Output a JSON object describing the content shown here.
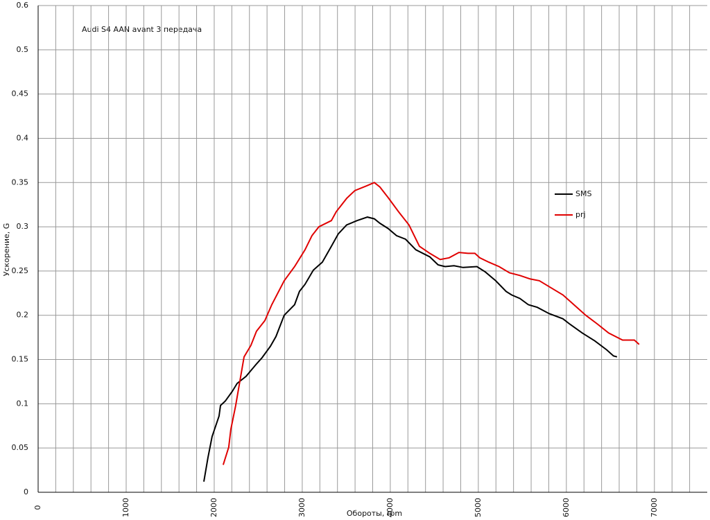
{
  "chart_data": {
    "type": "line",
    "title": "Audi S4 AAN avant 3 передача",
    "x_label": "Обороты, rpm",
    "y_label": "Ускорение, G",
    "xlim": [
      0,
      7600
    ],
    "xticks": [
      0,
      1000,
      2000,
      3000,
      4000,
      5000,
      6000,
      7000
    ],
    "ylim": [
      0,
      0.55
    ],
    "yticks": [
      0,
      0.05,
      0.1,
      0.15,
      0.2,
      0.25,
      0.3,
      0.35,
      0.4,
      0.45,
      0.5,
      {
        "value": 0.55,
        "label": "0.6"
      }
    ],
    "grid": true,
    "series": [
      {
        "name": "SMS",
        "color": "#000000",
        "x": [
          1882,
          1929,
          1976,
          2055,
          2071,
          2126,
          2205,
          2260,
          2362,
          2480,
          2543,
          2638,
          2701,
          2795,
          2913,
          2968,
          3031,
          3126,
          3228,
          3331,
          3409,
          3504,
          3622,
          3740,
          3819,
          3882,
          3976,
          4071,
          4173,
          4291,
          4449,
          4543,
          4622,
          4724,
          4827,
          4984,
          5079,
          5197,
          5315,
          5378,
          5472,
          5567,
          5669,
          5803,
          5961,
          6039,
          6181,
          6323,
          6457,
          6535,
          6575
        ],
        "values": [
          0.012,
          0.039,
          0.063,
          0.086,
          0.098,
          0.103,
          0.114,
          0.123,
          0.131,
          0.145,
          0.152,
          0.165,
          0.176,
          0.2,
          0.212,
          0.227,
          0.235,
          0.251,
          0.26,
          0.278,
          0.292,
          0.302,
          0.307,
          0.311,
          0.309,
          0.304,
          0.298,
          0.29,
          0.286,
          0.274,
          0.266,
          0.257,
          0.255,
          0.256,
          0.254,
          0.255,
          0.249,
          0.239,
          0.227,
          0.223,
          0.219,
          0.212,
          0.209,
          0.202,
          0.196,
          0.19,
          0.18,
          0.171,
          0.161,
          0.154,
          0.153
        ]
      },
      {
        "name": "prj",
        "color": "#e00000",
        "x": [
          2102,
          2165,
          2189,
          2244,
          2339,
          2417,
          2480,
          2575,
          2654,
          2795,
          2913,
          3031,
          3110,
          3189,
          3331,
          3386,
          3504,
          3598,
          3724,
          3819,
          3882,
          3976,
          4094,
          4213,
          4331,
          4449,
          4567,
          4669,
          4780,
          4882,
          4961,
          5016,
          5118,
          5236,
          5354,
          5472,
          5591,
          5693,
          5827,
          5961,
          6063,
          6220,
          6354,
          6480,
          6638,
          6772,
          6827
        ],
        "values": [
          0.031,
          0.051,
          0.071,
          0.098,
          0.153,
          0.166,
          0.182,
          0.194,
          0.212,
          0.239,
          0.255,
          0.274,
          0.29,
          0.3,
          0.307,
          0.317,
          0.332,
          0.341,
          0.346,
          0.35,
          0.345,
          0.333,
          0.317,
          0.302,
          0.278,
          0.27,
          0.263,
          0.265,
          0.271,
          0.27,
          0.27,
          0.265,
          0.26,
          0.255,
          0.248,
          0.245,
          0.241,
          0.239,
          0.231,
          0.223,
          0.214,
          0.2,
          0.19,
          0.18,
          0.172,
          0.172,
          0.167
        ]
      }
    ]
  }
}
